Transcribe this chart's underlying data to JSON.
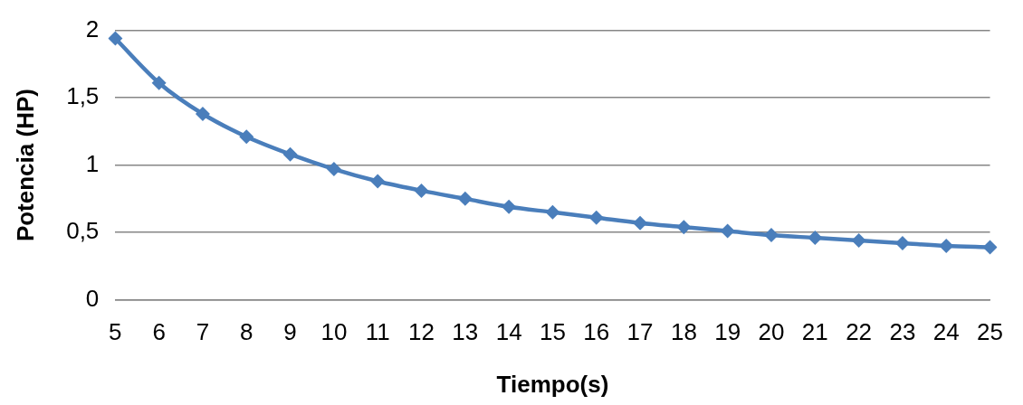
{
  "chart_data": {
    "type": "line",
    "xlabel": "Tiempo(s)",
    "ylabel": "Potencia (HP)",
    "categories": [
      "5",
      "6",
      "7",
      "8",
      "9",
      "10",
      "11",
      "12",
      "13",
      "14",
      "15",
      "16",
      "17",
      "18",
      "19",
      "20",
      "21",
      "22",
      "23",
      "24",
      "25"
    ],
    "series": [
      {
        "color": "#4a7ebb",
        "values": [
          1.94,
          1.61,
          1.38,
          1.21,
          1.08,
          0.97,
          0.88,
          0.81,
          0.75,
          0.69,
          0.65,
          0.61,
          0.57,
          0.54,
          0.51,
          0.48,
          0.46,
          0.44,
          0.42,
          0.4,
          0.39
        ]
      }
    ],
    "ylim": [
      0,
      2
    ],
    "yticks": [
      0,
      {
        "value": 0.5,
        "label": "0,5"
      },
      1,
      {
        "value": 1.5,
        "label": "1,5"
      },
      2
    ],
    "grid": "y",
    "legend": false,
    "marker": "diamond",
    "line_style": "solid"
  }
}
